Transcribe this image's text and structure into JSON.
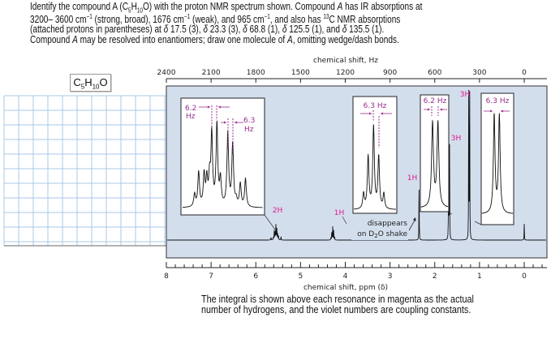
{
  "question": {
    "lines": [
      [
        [
          "Identify the compound ",
          ""
        ],
        [
          "A",
          ""
        ],
        [
          " (C",
          ""
        ],
        [
          "5",
          "sub"
        ],
        [
          "H",
          ""
        ],
        [
          "10",
          "sub"
        ],
        [
          "O) with the proton NMR spectrum shown. Compound ",
          ""
        ],
        [
          "A",
          "i"
        ],
        [
          " has IR absorptions at",
          ""
        ]
      ],
      [
        [
          "3200– 3600 cm",
          ""
        ],
        [
          "−1",
          "sup"
        ],
        [
          " (strong, broad), 1676 cm",
          ""
        ],
        [
          "−1",
          "sup"
        ],
        [
          " (weak), and 965 cm",
          ""
        ],
        [
          "−1",
          "sup"
        ],
        [
          ", and also has ",
          ""
        ],
        [
          "13",
          "sup"
        ],
        [
          "C NMR absorptions",
          ""
        ]
      ],
      [
        [
          "(attached protons in parentheses) at ",
          ""
        ],
        [
          "δ",
          "i"
        ],
        [
          " 17.5 (3), ",
          ""
        ],
        [
          "δ",
          "i"
        ],
        [
          " 23.3 (3), ",
          ""
        ],
        [
          "δ",
          "i"
        ],
        [
          " 68.8 (1), ",
          ""
        ],
        [
          "δ",
          "i"
        ],
        [
          " 125.5 (1), and ",
          ""
        ],
        [
          "δ",
          "i"
        ],
        [
          " 135.5 (1).",
          ""
        ]
      ],
      [
        [
          "Compound ",
          ""
        ],
        [
          "A",
          "i"
        ],
        [
          " may be resolved into enantiomers; draw one molecule of ",
          ""
        ],
        [
          "A",
          "i"
        ],
        [
          ", omitting wedge/dash bonds.",
          ""
        ]
      ]
    ]
  },
  "formula_box": {
    "c": "C",
    "c_n": "5",
    "h": "H",
    "h_n": "10",
    "o": "O"
  },
  "caption": {
    "line1": "The integral is shown above each resonance in magenta as the actual",
    "line2": "number of hydrogens, and the violet numbers are coupling constants."
  },
  "colors": {
    "plot_bg": "#d3deed",
    "grid": "#a9c8e8",
    "integral": "#e0198f",
    "coupling": "#9b2d8e"
  },
  "chart_data": {
    "type": "line",
    "title": "",
    "xlabel": "chemical shift, ppm (δ)",
    "x2label": "chemical shift, Hz",
    "xlim": [
      8,
      0
    ],
    "x_ticks": [
      "8",
      "7",
      "6",
      "5",
      "4",
      "3",
      "2",
      "1",
      "0"
    ],
    "x2_ticks": [
      "2400",
      "2100",
      "1800",
      "1500",
      "1200",
      "900",
      "600",
      "300",
      "0"
    ],
    "peaks": [
      {
        "ppm": 5.55,
        "integral": "2H",
        "multiplicity": "multiplet",
        "couplings": [
          "6.2 Hz",
          "6.3 Hz"
        ],
        "rel_height": 0.11
      },
      {
        "ppm": 4.28,
        "integral": "1H",
        "multiplicity": "quintet",
        "couplings": [
          "6.3 Hz"
        ],
        "rel_height": 0.1
      },
      {
        "ppm": 2.35,
        "integral": "1H",
        "multiplicity": "singlet",
        "note": "disappears on D₂O shake",
        "rel_height": 0.37
      },
      {
        "ppm": 1.68,
        "integral": "3H",
        "multiplicity": "doublet",
        "couplings": [
          "6.2 Hz"
        ],
        "rel_height": 0.65
      },
      {
        "ppm": 1.23,
        "integral": "3H",
        "multiplicity": "doublet",
        "couplings": [
          "6.3 Hz"
        ],
        "rel_height": 1.0
      },
      {
        "ppm": 0.0,
        "integral": "",
        "multiplicity": "singlet",
        "rel_height": 0.11
      }
    ],
    "labels": {
      "i1_a": "6.2",
      "i1_b": "Hz",
      "i1_c": "6.3",
      "i1_d": "Hz",
      "i2": "6.3 Hz",
      "i3": "6.2 Hz",
      "i4": "6.3 Hz",
      "h_2h": "2H",
      "h_1h_a": "1H",
      "h_1h_b": "1H",
      "h_3h_a": "3H",
      "h_3h_b": "3H",
      "d2o_1": "disappears",
      "d2o_2": "on D",
      "d2o_sub": "2",
      "d2o_3": "O shake"
    }
  }
}
